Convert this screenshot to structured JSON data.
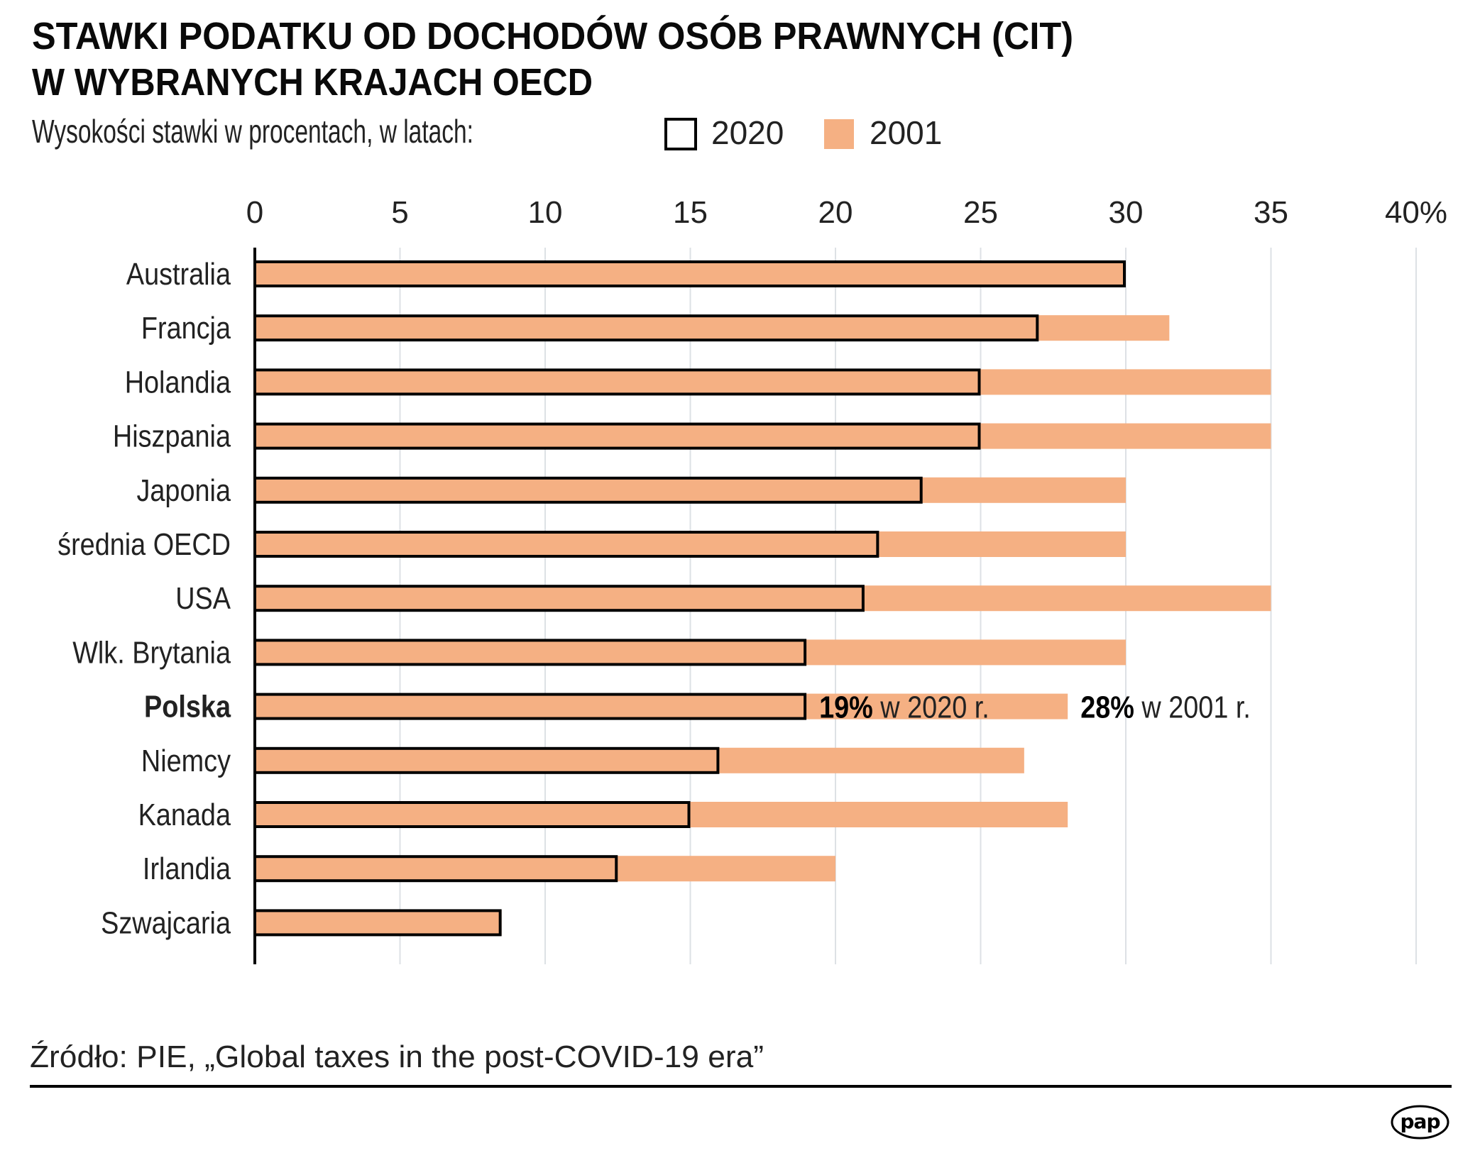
{
  "title_lines": [
    "STAWKI PODATKU OD DOCHODÓW OSÓB PRAWNYCH (CIT)",
    "W WYBRANYCH KRAJACH OECD"
  ],
  "subtitle": "Wysokości stawki w procentach, w latach:",
  "legend": [
    {
      "label": "2020",
      "style": "outline",
      "color": "#000000"
    },
    {
      "label": "2001",
      "style": "fill",
      "color": "#F5B083"
    }
  ],
  "colors": {
    "bar_2001": "#F5B083",
    "bar_2020_fill": "#F5B083",
    "bar_2020_outline": "#000000",
    "grid": "#DDE1E5"
  },
  "source": "Źródło: PIE, „Global taxes in the post-COVID-19 era”",
  "logo_text": "pap",
  "chart_data": {
    "type": "bar",
    "orientation": "horizontal",
    "title": "STAWKI PODATKU OD DOCHODÓW OSÓB PRAWNYCH (CIT) W WYBRANYCH KRAJACH OECD",
    "xlabel": "",
    "ylabel": "",
    "xlim": [
      0,
      40
    ],
    "x_ticks": [
      0,
      5,
      10,
      15,
      20,
      25,
      30,
      35,
      40
    ],
    "x_tick_labels": [
      "0",
      "5",
      "10",
      "15",
      "20",
      "25",
      "30",
      "35",
      "40%"
    ],
    "grid": true,
    "legend_position": "top",
    "categories": [
      "Australia",
      "Francja",
      "Holandia",
      "Hiszpania",
      "Japonia",
      "średnia OECD",
      "USA",
      "Wlk. Brytania",
      "Polska",
      "Niemcy",
      "Kanada",
      "Irlandia",
      "Szwajcaria"
    ],
    "highlight_category": "Polska",
    "series": [
      {
        "name": "2020",
        "values": [
          30,
          27,
          25,
          25,
          23,
          21.5,
          21,
          19,
          19,
          16,
          15,
          12.5,
          8.5
        ]
      },
      {
        "name": "2001",
        "values": [
          30,
          31.5,
          35,
          35,
          30,
          30,
          35,
          30,
          28,
          26.5,
          28,
          20,
          8.5
        ]
      }
    ],
    "annotations": [
      {
        "category": "Polska",
        "value_text": "19%",
        "rest_text": " w 2020 r."
      },
      {
        "category": "Polska",
        "value_text": "28%",
        "rest_text": " w 2001 r."
      }
    ]
  }
}
